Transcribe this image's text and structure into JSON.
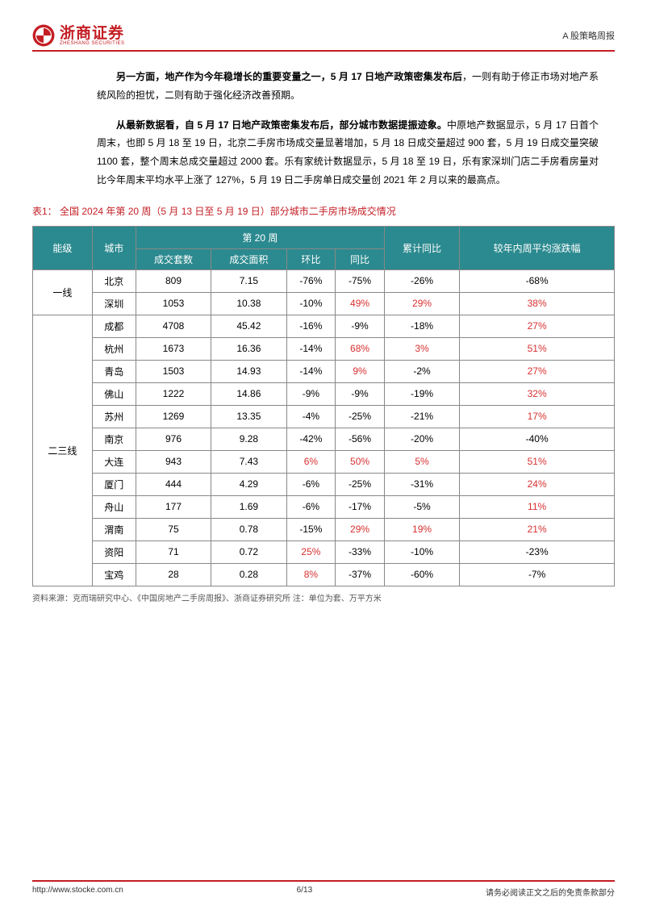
{
  "header": {
    "logo_cn": "浙商证券",
    "logo_en": "ZHESHANG SECURITIES",
    "report_type": "A 股策略周报"
  },
  "paragraphs": {
    "p1_bold": "另一方面，地产作为今年稳增长的重要变量之一，5 月 17 日地产政策密集发布后",
    "p1_rest": "，一则有助于修正市场对地产系统风险的担忧，二则有助于强化经济改善预期。",
    "p2_bold": "从最新数据看，自 5 月 17 日地产政策密集发布后，部分城市数据提振迹象。",
    "p2_rest": "中原地产数据显示，5 月 17 日首个周末，也即 5 月 18 至 19 日，北京二手房市场成交量显著增加，5 月 18 日成交量超过 900 套，5 月 19 日成交量突破 1100 套，整个周末总成交量超过 2000 套。乐有家统计数据显示，5 月 18 至 19 日，乐有家深圳门店二手房看房量对比今年周末平均水平上涨了 127%，5 月 19 日二手房单日成交量创 2021 年 2 月以来的最高点。"
  },
  "table": {
    "caption": "表1：  全国 2024 年第 20 周（5 月 13 日至 5 月 19 日）部分城市二手房市场成交情况",
    "headers": {
      "tier": "能级",
      "city": "城市",
      "week_group": "第 20 周",
      "vol": "成交套数",
      "area": "成交面积",
      "wow": "环比",
      "yoy": "同比",
      "cum_yoy": "累计同比",
      "vs_avg": "较年内周平均涨跌幅"
    },
    "tiers": [
      {
        "name": "一线",
        "rows": [
          {
            "city": "北京",
            "vol": "809",
            "area": "7.15",
            "wow": "-76%",
            "wow_c": "neg",
            "yoy": "-75%",
            "yoy_c": "neg",
            "cum": "-26%",
            "cum_c": "neg",
            "avg": "-68%",
            "avg_c": "neg"
          },
          {
            "city": "深圳",
            "vol": "1053",
            "area": "10.38",
            "wow": "-10%",
            "wow_c": "neg",
            "yoy": "49%",
            "yoy_c": "pos",
            "cum": "29%",
            "cum_c": "pos",
            "avg": "38%",
            "avg_c": "pos"
          }
        ]
      },
      {
        "name": "二三线",
        "rows": [
          {
            "city": "成都",
            "vol": "4708",
            "area": "45.42",
            "wow": "-16%",
            "wow_c": "neg",
            "yoy": "-9%",
            "yoy_c": "neg",
            "cum": "-18%",
            "cum_c": "neg",
            "avg": "27%",
            "avg_c": "pos"
          },
          {
            "city": "杭州",
            "vol": "1673",
            "area": "16.36",
            "wow": "-14%",
            "wow_c": "neg",
            "yoy": "68%",
            "yoy_c": "pos",
            "cum": "3%",
            "cum_c": "pos",
            "avg": "51%",
            "avg_c": "pos"
          },
          {
            "city": "青岛",
            "vol": "1503",
            "area": "14.93",
            "wow": "-14%",
            "wow_c": "neg",
            "yoy": "9%",
            "yoy_c": "pos",
            "cum": "-2%",
            "cum_c": "neg",
            "avg": "27%",
            "avg_c": "pos"
          },
          {
            "city": "佛山",
            "vol": "1222",
            "area": "14.86",
            "wow": "-9%",
            "wow_c": "neg",
            "yoy": "-9%",
            "yoy_c": "neg",
            "cum": "-19%",
            "cum_c": "neg",
            "avg": "32%",
            "avg_c": "pos"
          },
          {
            "city": "苏州",
            "vol": "1269",
            "area": "13.35",
            "wow": "-4%",
            "wow_c": "neg",
            "yoy": "-25%",
            "yoy_c": "neg",
            "cum": "-21%",
            "cum_c": "neg",
            "avg": "17%",
            "avg_c": "pos"
          },
          {
            "city": "南京",
            "vol": "976",
            "area": "9.28",
            "wow": "-42%",
            "wow_c": "neg",
            "yoy": "-56%",
            "yoy_c": "neg",
            "cum": "-20%",
            "cum_c": "neg",
            "avg": "-40%",
            "avg_c": "neg"
          },
          {
            "city": "大连",
            "vol": "943",
            "area": "7.43",
            "wow": "6%",
            "wow_c": "pos",
            "yoy": "50%",
            "yoy_c": "pos",
            "cum": "5%",
            "cum_c": "pos",
            "avg": "51%",
            "avg_c": "pos"
          },
          {
            "city": "厦门",
            "vol": "444",
            "area": "4.29",
            "wow": "-6%",
            "wow_c": "neg",
            "yoy": "-25%",
            "yoy_c": "neg",
            "cum": "-31%",
            "cum_c": "neg",
            "avg": "24%",
            "avg_c": "pos"
          },
          {
            "city": "舟山",
            "vol": "177",
            "area": "1.69",
            "wow": "-6%",
            "wow_c": "neg",
            "yoy": "-17%",
            "yoy_c": "neg",
            "cum": "-5%",
            "cum_c": "neg",
            "avg": "11%",
            "avg_c": "pos"
          },
          {
            "city": "渭南",
            "vol": "75",
            "area": "0.78",
            "wow": "-15%",
            "wow_c": "neg",
            "yoy": "29%",
            "yoy_c": "pos",
            "cum": "19%",
            "cum_c": "pos",
            "avg": "21%",
            "avg_c": "pos"
          },
          {
            "city": "资阳",
            "vol": "71",
            "area": "0.72",
            "wow": "25%",
            "wow_c": "pos",
            "yoy": "-33%",
            "yoy_c": "neg",
            "cum": "-10%",
            "cum_c": "neg",
            "avg": "-23%",
            "avg_c": "neg"
          },
          {
            "city": "宝鸡",
            "vol": "28",
            "area": "0.28",
            "wow": "8%",
            "wow_c": "pos",
            "yoy": "-37%",
            "yoy_c": "neg",
            "cum": "-60%",
            "cum_c": "neg",
            "avg": "-7%",
            "avg_c": "neg"
          }
        ]
      }
    ],
    "source": "资料来源：克而瑞研究中心、《中国房地产二手房周报》、浙商证券研究所        注：单位为套、万平方米"
  },
  "footer": {
    "url": "http://www.stocke.com.cn",
    "page": "6/13",
    "disclaimer": "请务必阅读正文之后的免责条款部分"
  }
}
